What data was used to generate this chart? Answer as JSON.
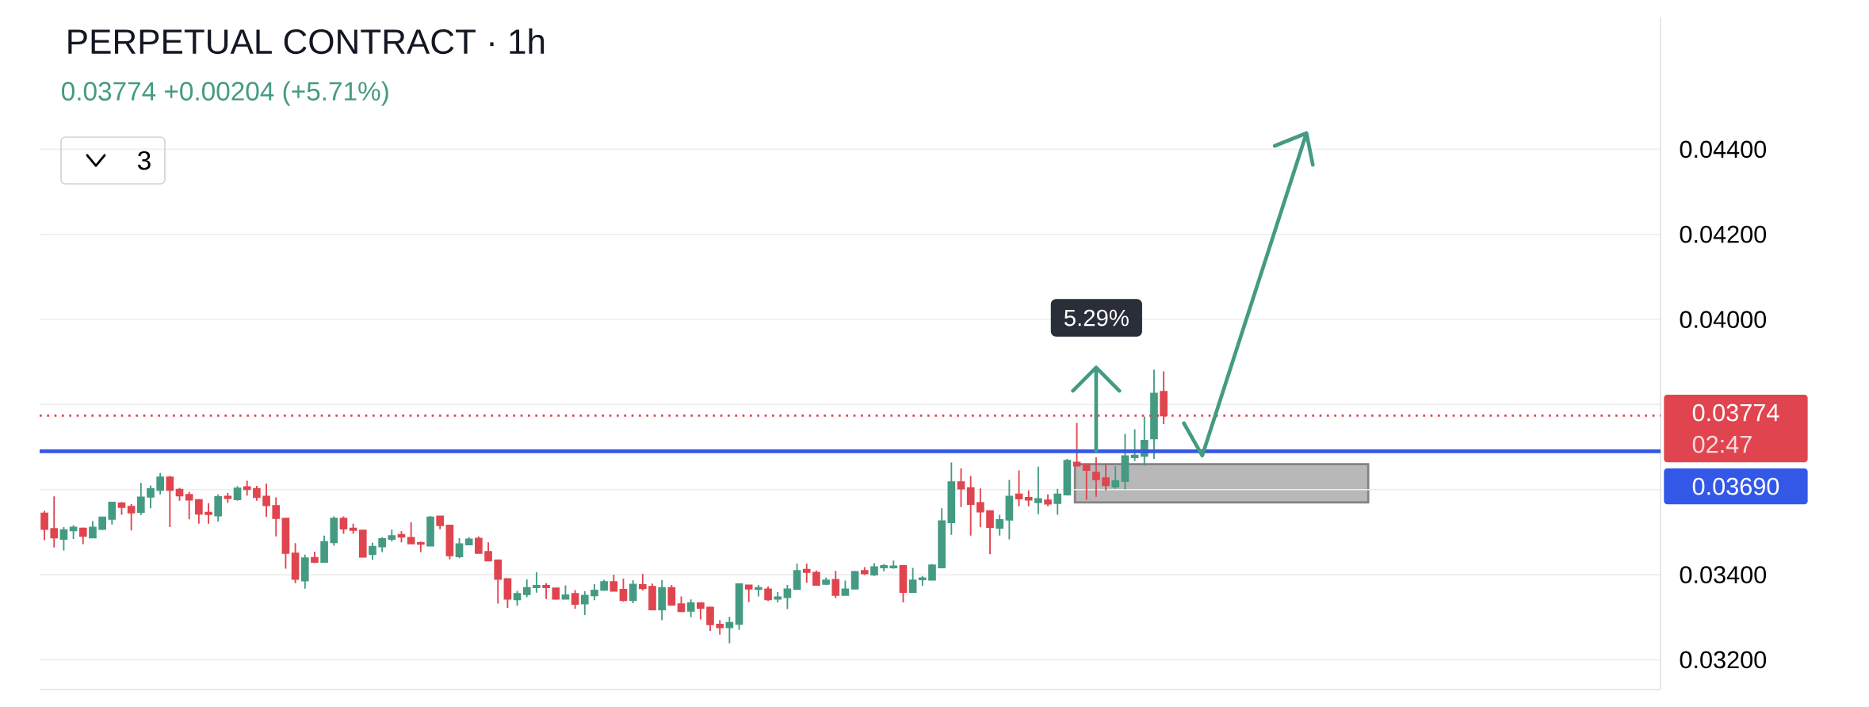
{
  "chart_data": {
    "type": "candlestick",
    "title": "PERPETUAL CONTRACT · 1h",
    "subtitle": "0.03774 +0.00204 (+5.71%)",
    "categories": [
      null,
      null,
      null,
      null,
      null,
      null,
      null,
      null,
      null,
      null,
      null,
      null,
      null,
      null,
      null,
      null,
      null,
      null,
      null,
      null,
      null,
      null,
      null,
      null,
      null,
      null,
      null,
      null,
      null,
      null,
      null,
      null,
      null,
      null,
      null,
      null,
      null,
      null,
      null,
      null,
      null,
      null,
      null,
      null,
      null,
      null,
      null,
      null,
      null,
      null,
      null,
      null,
      null,
      null,
      null,
      null,
      null,
      null,
      null,
      null,
      null,
      null,
      null,
      null,
      null,
      null,
      null,
      null,
      null,
      null,
      null,
      null,
      null,
      null,
      null,
      null,
      null,
      null,
      null,
      null,
      null,
      null,
      null,
      null,
      null,
      null,
      null,
      null,
      null,
      null,
      null,
      null,
      null,
      null,
      null,
      null,
      null,
      null,
      null,
      null,
      null,
      null,
      null,
      null,
      null,
      null,
      null,
      null,
      null,
      null,
      null,
      null,
      null,
      null,
      null,
      null,
      null,
      null,
      null,
      null,
      null,
      null,
      null,
      null,
      null,
      null,
      null,
      null,
      null,
      null,
      null,
      null,
      null,
      null,
      null,
      null,
      null,
      null,
      null,
      null,
      null,
      null,
      null,
      null,
      null,
      null,
      null,
      null,
      null,
      null,
      null,
      null,
      null,
      null,
      null,
      null,
      null,
      null,
      null,
      null,
      null,
      null,
      null,
      null,
      null,
      null,
      null,
      null
    ],
    "ohlc": [
      [
        0.03544,
        0.0355,
        0.03481,
        0.03507
      ],
      [
        0.03508,
        0.03584,
        0.03464,
        0.03487
      ],
      [
        0.03484,
        0.03512,
        0.03457,
        0.03505
      ],
      [
        0.03504,
        0.03516,
        0.03484,
        0.03511
      ],
      [
        0.03509,
        0.03511,
        0.03472,
        0.03491
      ],
      [
        0.03487,
        0.03526,
        0.03486,
        0.03511
      ],
      [
        0.03507,
        0.03536,
        0.03505,
        0.03535
      ],
      [
        0.03531,
        0.03571,
        0.03518,
        0.0357
      ],
      [
        0.03568,
        0.03571,
        0.03541,
        0.03559
      ],
      [
        0.0356,
        0.03566,
        0.03504,
        0.03546
      ],
      [
        0.03547,
        0.03616,
        0.0354,
        0.03582
      ],
      [
        0.03583,
        0.0361,
        0.03556,
        0.03602
      ],
      [
        0.03599,
        0.03639,
        0.03589,
        0.03629
      ],
      [
        0.03629,
        0.03632,
        0.03512,
        0.03599
      ],
      [
        0.036,
        0.03604,
        0.03574,
        0.03586
      ],
      [
        0.03588,
        0.03595,
        0.0353,
        0.03576
      ],
      [
        0.03576,
        0.03578,
        0.0352,
        0.03543
      ],
      [
        0.03546,
        0.03568,
        0.0352,
        0.03542
      ],
      [
        0.03539,
        0.03589,
        0.03525,
        0.03583
      ],
      [
        0.03584,
        0.03592,
        0.03569,
        0.0358
      ],
      [
        0.03577,
        0.03608,
        0.03574,
        0.03603
      ],
      [
        0.03606,
        0.03621,
        0.03586,
        0.03601
      ],
      [
        0.03602,
        0.03609,
        0.03574,
        0.03582
      ],
      [
        0.03584,
        0.03614,
        0.03536,
        0.03563
      ],
      [
        0.03562,
        0.03582,
        0.0349,
        0.03533
      ],
      [
        0.03532,
        0.03533,
        0.03414,
        0.03451
      ],
      [
        0.0345,
        0.03474,
        0.0338,
        0.0339
      ],
      [
        0.03386,
        0.03447,
        0.03367,
        0.03439
      ],
      [
        0.0344,
        0.03454,
        0.03427,
        0.0343
      ],
      [
        0.0343,
        0.03492,
        0.0343,
        0.03477
      ],
      [
        0.03476,
        0.03537,
        0.03468,
        0.03532
      ],
      [
        0.03532,
        0.03537,
        0.03496,
        0.03508
      ],
      [
        0.03509,
        0.0352,
        0.03496,
        0.03505
      ],
      [
        0.03504,
        0.03506,
        0.03441,
        0.03442
      ],
      [
        0.03448,
        0.03475,
        0.03435,
        0.03466
      ],
      [
        0.03466,
        0.03488,
        0.03453,
        0.03484
      ],
      [
        0.03484,
        0.03506,
        0.03478,
        0.03491
      ],
      [
        0.03494,
        0.03502,
        0.03476,
        0.03489
      ],
      [
        0.03487,
        0.03523,
        0.03472,
        0.03473
      ],
      [
        0.03475,
        0.03478,
        0.03453,
        0.03472
      ],
      [
        0.03468,
        0.03538,
        0.03468,
        0.03535
      ],
      [
        0.03537,
        0.03538,
        0.03507,
        0.03516
      ],
      [
        0.03516,
        0.03516,
        0.03436,
        0.03445
      ],
      [
        0.03443,
        0.03486,
        0.03439,
        0.03472
      ],
      [
        0.03471,
        0.03488,
        0.03471,
        0.03483
      ],
      [
        0.03485,
        0.0349,
        0.0345,
        0.03451
      ],
      [
        0.03454,
        0.03476,
        0.03432,
        0.03433
      ],
      [
        0.03434,
        0.03436,
        0.03332,
        0.0339
      ],
      [
        0.0339,
        0.03391,
        0.03322,
        0.03343
      ],
      [
        0.03342,
        0.03362,
        0.03327,
        0.03355
      ],
      [
        0.03354,
        0.03389,
        0.03347,
        0.03369
      ],
      [
        0.0337,
        0.03406,
        0.03358,
        0.03374
      ],
      [
        0.03374,
        0.0338,
        0.03343,
        0.0337
      ],
      [
        0.03368,
        0.0337,
        0.03341,
        0.03343
      ],
      [
        0.03343,
        0.03375,
        0.03343,
        0.03352
      ],
      [
        0.03355,
        0.03364,
        0.0332,
        0.03331
      ],
      [
        0.03332,
        0.03361,
        0.03305,
        0.03351
      ],
      [
        0.03351,
        0.03378,
        0.0334,
        0.03363
      ],
      [
        0.03364,
        0.03388,
        0.03362,
        0.03383
      ],
      [
        0.03383,
        0.034,
        0.0336,
        0.03362
      ],
      [
        0.03365,
        0.03391,
        0.03337,
        0.0334
      ],
      [
        0.0334,
        0.03387,
        0.03333,
        0.03377
      ],
      [
        0.03376,
        0.03402,
        0.03363,
        0.03368
      ],
      [
        0.03372,
        0.03379,
        0.03317,
        0.03318
      ],
      [
        0.03318,
        0.03387,
        0.03293,
        0.03369
      ],
      [
        0.03369,
        0.03376,
        0.03327,
        0.03329
      ],
      [
        0.03331,
        0.03349,
        0.03313,
        0.03314
      ],
      [
        0.03315,
        0.03342,
        0.033,
        0.03333
      ],
      [
        0.03333,
        0.03335,
        0.03295,
        0.03322
      ],
      [
        0.03323,
        0.03325,
        0.03268,
        0.03283
      ],
      [
        0.03283,
        0.03293,
        0.03259,
        0.03276
      ],
      [
        0.03276,
        0.03301,
        0.03239,
        0.03287
      ],
      [
        0.03284,
        0.03378,
        0.0327,
        0.03378
      ],
      [
        0.03375,
        0.03376,
        0.03336,
        0.03367
      ],
      [
        0.03366,
        0.03376,
        0.03349,
        0.03369
      ],
      [
        0.03366,
        0.03372,
        0.03338,
        0.03342
      ],
      [
        0.03343,
        0.03359,
        0.03335,
        0.03347
      ],
      [
        0.03347,
        0.03376,
        0.03319,
        0.03366
      ],
      [
        0.03366,
        0.03426,
        0.03365,
        0.03409
      ],
      [
        0.03412,
        0.03426,
        0.03381,
        0.03406
      ],
      [
        0.03405,
        0.0341,
        0.03375,
        0.03376
      ],
      [
        0.03378,
        0.03393,
        0.03376,
        0.03387
      ],
      [
        0.03388,
        0.03409,
        0.03345,
        0.03352
      ],
      [
        0.03352,
        0.03386,
        0.03352,
        0.03366
      ],
      [
        0.03367,
        0.03409,
        0.03366,
        0.03407
      ],
      [
        0.03409,
        0.03418,
        0.03399,
        0.03403
      ],
      [
        0.034,
        0.03427,
        0.03397,
        0.03418
      ],
      [
        0.03417,
        0.03425,
        0.03408,
        0.03421
      ],
      [
        0.03417,
        0.03433,
        0.03414,
        0.0342
      ],
      [
        0.03421,
        0.03423,
        0.03335,
        0.03359
      ],
      [
        0.03359,
        0.03416,
        0.03359,
        0.03387
      ],
      [
        0.03389,
        0.03397,
        0.03374,
        0.03392
      ],
      [
        0.03388,
        0.03425,
        0.03387,
        0.03422
      ],
      [
        0.03417,
        0.03556,
        0.03417,
        0.03526
      ],
      [
        0.03523,
        0.03664,
        0.03494,
        0.03618
      ],
      [
        0.03618,
        0.0365,
        0.03559,
        0.03602
      ],
      [
        0.03604,
        0.03632,
        0.03492,
        0.03566
      ],
      [
        0.03569,
        0.03603,
        0.03512,
        0.03548
      ],
      [
        0.0355,
        0.03551,
        0.03448,
        0.03512
      ],
      [
        0.0351,
        0.03541,
        0.03492,
        0.03529
      ],
      [
        0.03529,
        0.03623,
        0.03483,
        0.03584
      ],
      [
        0.03589,
        0.03645,
        0.03561,
        0.03579
      ],
      [
        0.03581,
        0.03598,
        0.03561,
        0.03576
      ],
      [
        0.0357,
        0.03654,
        0.03542,
        0.03578
      ],
      [
        0.03575,
        0.03589,
        0.03561,
        0.03567
      ],
      [
        0.03568,
        0.03602,
        0.03541,
        0.03589
      ],
      [
        0.03588,
        0.03672,
        0.03586,
        0.03668
      ],
      [
        0.03664,
        0.03757,
        0.03655,
        0.03656
      ],
      [
        0.03658,
        0.03658,
        0.03576,
        0.03646
      ],
      [
        0.0364,
        0.03676,
        0.03583,
        0.03624
      ],
      [
        0.03627,
        0.03661,
        0.03598,
        0.0361
      ],
      [
        0.03607,
        0.03655,
        0.03602,
        0.0362
      ],
      [
        0.0362,
        0.03731,
        0.03601,
        0.03679
      ],
      [
        0.03676,
        0.03742,
        0.03667,
        0.0368
      ],
      [
        0.03679,
        0.03772,
        0.03656,
        0.03715
      ],
      [
        0.0372,
        0.03882,
        0.03672,
        0.03826
      ],
      [
        0.0383,
        0.03878,
        0.03754,
        0.03774
      ],
      null,
      null,
      null,
      null,
      null,
      null,
      null,
      null,
      null,
      null,
      null,
      null,
      null,
      null,
      null,
      null,
      null,
      null,
      null,
      null,
      null,
      null,
      null,
      null,
      null,
      null,
      null,
      null,
      null,
      null,
      null,
      null,
      null,
      null,
      null,
      null,
      null,
      null,
      null,
      null,
      null,
      null,
      null,
      null,
      null,
      null,
      null,
      null,
      null,
      null,
      null
    ],
    "ylim": [
      0.0313,
      0.0471
    ],
    "yticks": [
      {
        "value": 0.032,
        "label": "0.03200"
      },
      {
        "value": 0.034,
        "label": "0.03400"
      },
      {
        "value": 0.036,
        "label": null
      },
      {
        "value": 0.038,
        "label": null
      },
      {
        "value": 0.04,
        "label": "0.04000"
      },
      {
        "value": 0.042,
        "label": "0.04200"
      },
      {
        "value": 0.044,
        "label": "0.04400"
      }
    ],
    "grid": "y",
    "tick_labels": "y",
    "ref_lines": [
      {
        "axis": "y",
        "value": 0.03774,
        "label": "0.03774",
        "color": "#e0454f",
        "line_style": "dotted"
      },
      {
        "axis": "y",
        "value": 0.0369,
        "label": "0.03690",
        "color": "#3358e8",
        "line_style": "solid"
      }
    ],
    "annotations": [
      "3",
      "02:47",
      "5.29%"
    ]
  }
}
